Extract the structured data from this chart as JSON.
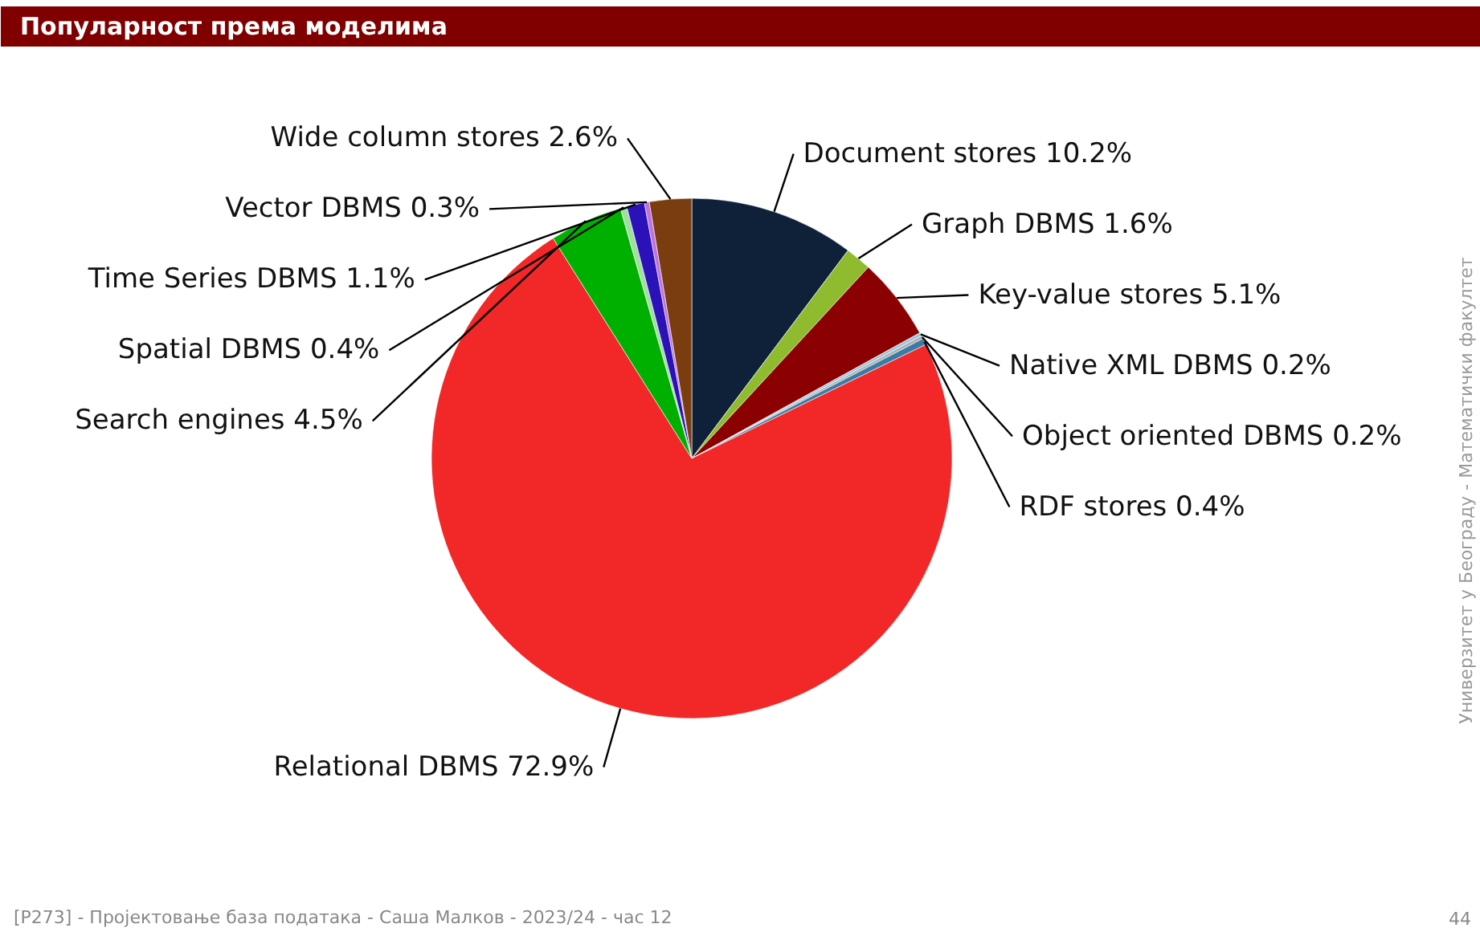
{
  "chart_data": {
    "type": "pie",
    "title": "Популарност према моделима",
    "categories": [
      "Document stores",
      "Graph DBMS",
      "Key-value stores",
      "Native XML DBMS",
      "Object oriented DBMS",
      "RDF stores",
      "Relational DBMS",
      "Search engines",
      "Spatial DBMS",
      "Time Series DBMS",
      "Vector DBMS",
      "Wide column stores"
    ],
    "values": [
      10.2,
      1.6,
      5.1,
      0.2,
      0.2,
      0.4,
      72.9,
      4.5,
      0.4,
      1.1,
      0.3,
      2.6
    ],
    "value_labels": [
      "10.2%",
      "1.6%",
      "5.1%",
      "0.2%",
      "0.2%",
      "0.4%",
      "72.9%",
      "4.5%",
      "0.4%",
      "1.1%",
      "0.3%",
      "2.6%"
    ],
    "colors": [
      "#0f2139",
      "#8ebc2e",
      "#8b0000",
      "#9ac5e0",
      "#b0b0b0",
      "#3a7ca5",
      "#f22727",
      "#00b000",
      "#9fe09f",
      "#2a12b8",
      "#c070e0",
      "#7a3d0f"
    ],
    "annotations": [
      "Универзитет у Београду - Математички факултет",
      "[P273] - Пројектовање база података   -   Саша Малков   -   2023/24   -   час 12",
      "44"
    ]
  }
}
